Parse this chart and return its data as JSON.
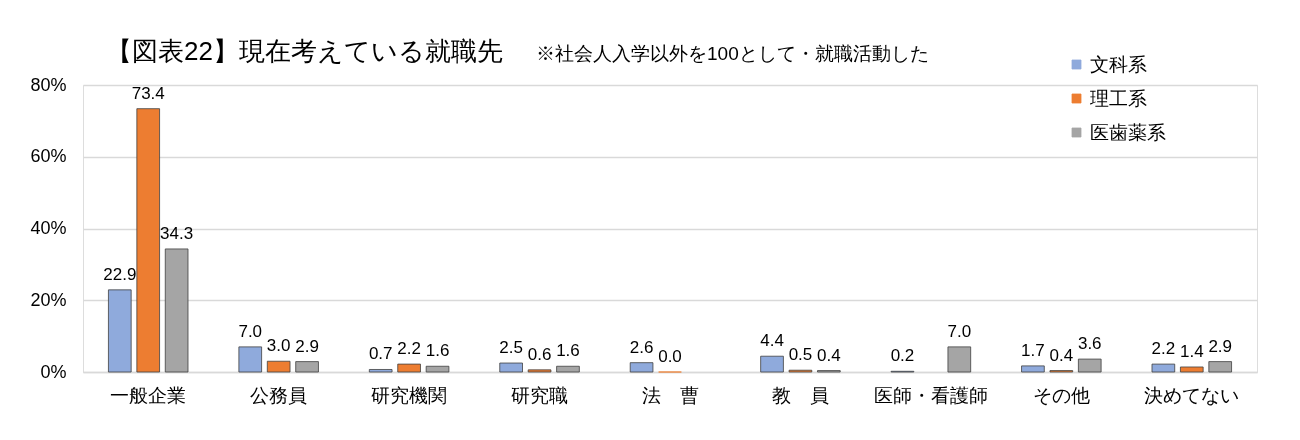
{
  "chart_data": {
    "type": "bar",
    "title": "【図表22】現在考えている就職先",
    "subtitle": "※社会人入学以外を100として・就職活動した",
    "categories": [
      "一般企業",
      "公務員",
      "研究機関",
      "研究職",
      "法　曹",
      "教　員",
      "医師・看護師",
      "その他",
      "決めてない"
    ],
    "series": [
      {
        "name": "文科系",
        "color": "#8faadc",
        "values": [
          22.9,
          7.0,
          0.7,
          2.5,
          2.6,
          4.4,
          0.2,
          1.7,
          2.2
        ],
        "value_labels": [
          "22.9",
          "7.0",
          "0.7",
          "2.5",
          "2.6",
          "4.4",
          "0.2",
          "1.7",
          "2.2"
        ]
      },
      {
        "name": "理工系",
        "color": "#ed7d31",
        "values": [
          73.4,
          3.0,
          2.2,
          0.6,
          0.0,
          0.5,
          null,
          0.4,
          1.4
        ],
        "value_labels": [
          "73.4",
          "3.0",
          "2.2",
          "0.6",
          "0.0",
          "0.5",
          null,
          "0.4",
          "1.4"
        ]
      },
      {
        "name": "医歯薬系",
        "color": "#a5a5a5",
        "values": [
          34.3,
          2.9,
          1.6,
          1.6,
          null,
          0.4,
          7.0,
          3.6,
          2.9
        ],
        "value_labels": [
          "34.3",
          "2.9",
          "1.6",
          "1.6",
          null,
          "0.4",
          "7.0",
          "3.6",
          "2.9"
        ]
      }
    ],
    "ylim": [
      0,
      80
    ],
    "yticks": [
      {
        "value": 0,
        "label": "0%"
      },
      {
        "value": 20,
        "label": "20%"
      },
      {
        "value": 40,
        "label": "40%"
      },
      {
        "value": 60,
        "label": "60%"
      },
      {
        "value": 80,
        "label": "80%"
      }
    ],
    "grid": "y",
    "legend": "top right"
  }
}
